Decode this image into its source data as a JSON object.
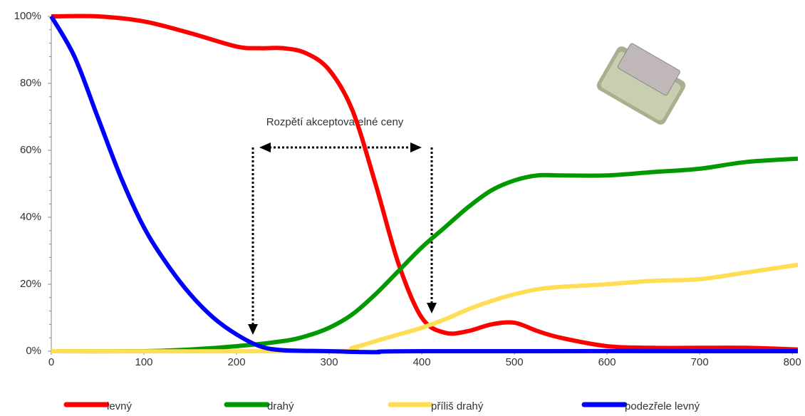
{
  "chart_data": {
    "type": "line",
    "annotation": "Rozpětí akceptovatelné ceny",
    "xlim": [
      0,
      806
    ],
    "xticks": [
      0,
      100,
      200,
      300,
      400,
      500,
      600,
      700,
      800
    ],
    "ylim": [
      0,
      100
    ],
    "yticks": [
      {
        "value": 0,
        "label": "0%"
      },
      {
        "value": 20,
        "label": "20%"
      },
      {
        "value": 40,
        "label": "40%"
      },
      {
        "value": 60,
        "label": "60%"
      },
      {
        "value": 80,
        "label": "80%"
      },
      {
        "value": 100,
        "label": "100%"
      }
    ],
    "series": [
      {
        "name": "levný",
        "color": "#ff0000",
        "x": [
          0,
          50,
          100,
          150,
          200,
          225,
          250,
          275,
          300,
          325,
          350,
          375,
          400,
          425,
          450,
          475,
          500,
          525,
          550,
          600,
          650,
          700,
          750,
          806
        ],
        "values": [
          100,
          100,
          98.5,
          95,
          91,
          90.5,
          90.5,
          89,
          84,
          72,
          50,
          26,
          10,
          5.5,
          6,
          8,
          8.5,
          6,
          4,
          1.5,
          1,
          1,
          1,
          0.5
        ]
      },
      {
        "name": "drahý",
        "color": "#009900",
        "x": [
          0,
          100,
          150,
          200,
          250,
          275,
          300,
          325,
          350,
          375,
          400,
          425,
          450,
          475,
          500,
          525,
          550,
          600,
          650,
          700,
          750,
          806
        ],
        "values": [
          0,
          0,
          0.5,
          1.5,
          3,
          4.5,
          7,
          11,
          17,
          24,
          31,
          37,
          43,
          48,
          51,
          52.5,
          52.5,
          52.5,
          53.5,
          54.5,
          56.5,
          57.5
        ]
      },
      {
        "name": "příliš drahý",
        "color": "#ffdd55",
        "x": [
          0,
          300,
          325,
          350,
          375,
          400,
          425,
          450,
          475,
          500,
          525,
          550,
          600,
          650,
          700,
          750,
          806
        ],
        "values": [
          0,
          0,
          1,
          3,
          5,
          7,
          9.5,
          12.5,
          15,
          17,
          18.5,
          19.2,
          20,
          21,
          21.5,
          23.5,
          25.8
        ]
      },
      {
        "name": "podezřele levný",
        "color": "#0000ff",
        "x": [
          0,
          25,
          50,
          75,
          100,
          125,
          150,
          175,
          200,
          225,
          250,
          300,
          350,
          400,
          806
        ],
        "values": [
          100,
          88,
          70,
          52,
          37,
          26,
          17,
          10,
          5,
          1.5,
          0.3,
          0,
          -0.3,
          0,
          0
        ]
      }
    ]
  }
}
